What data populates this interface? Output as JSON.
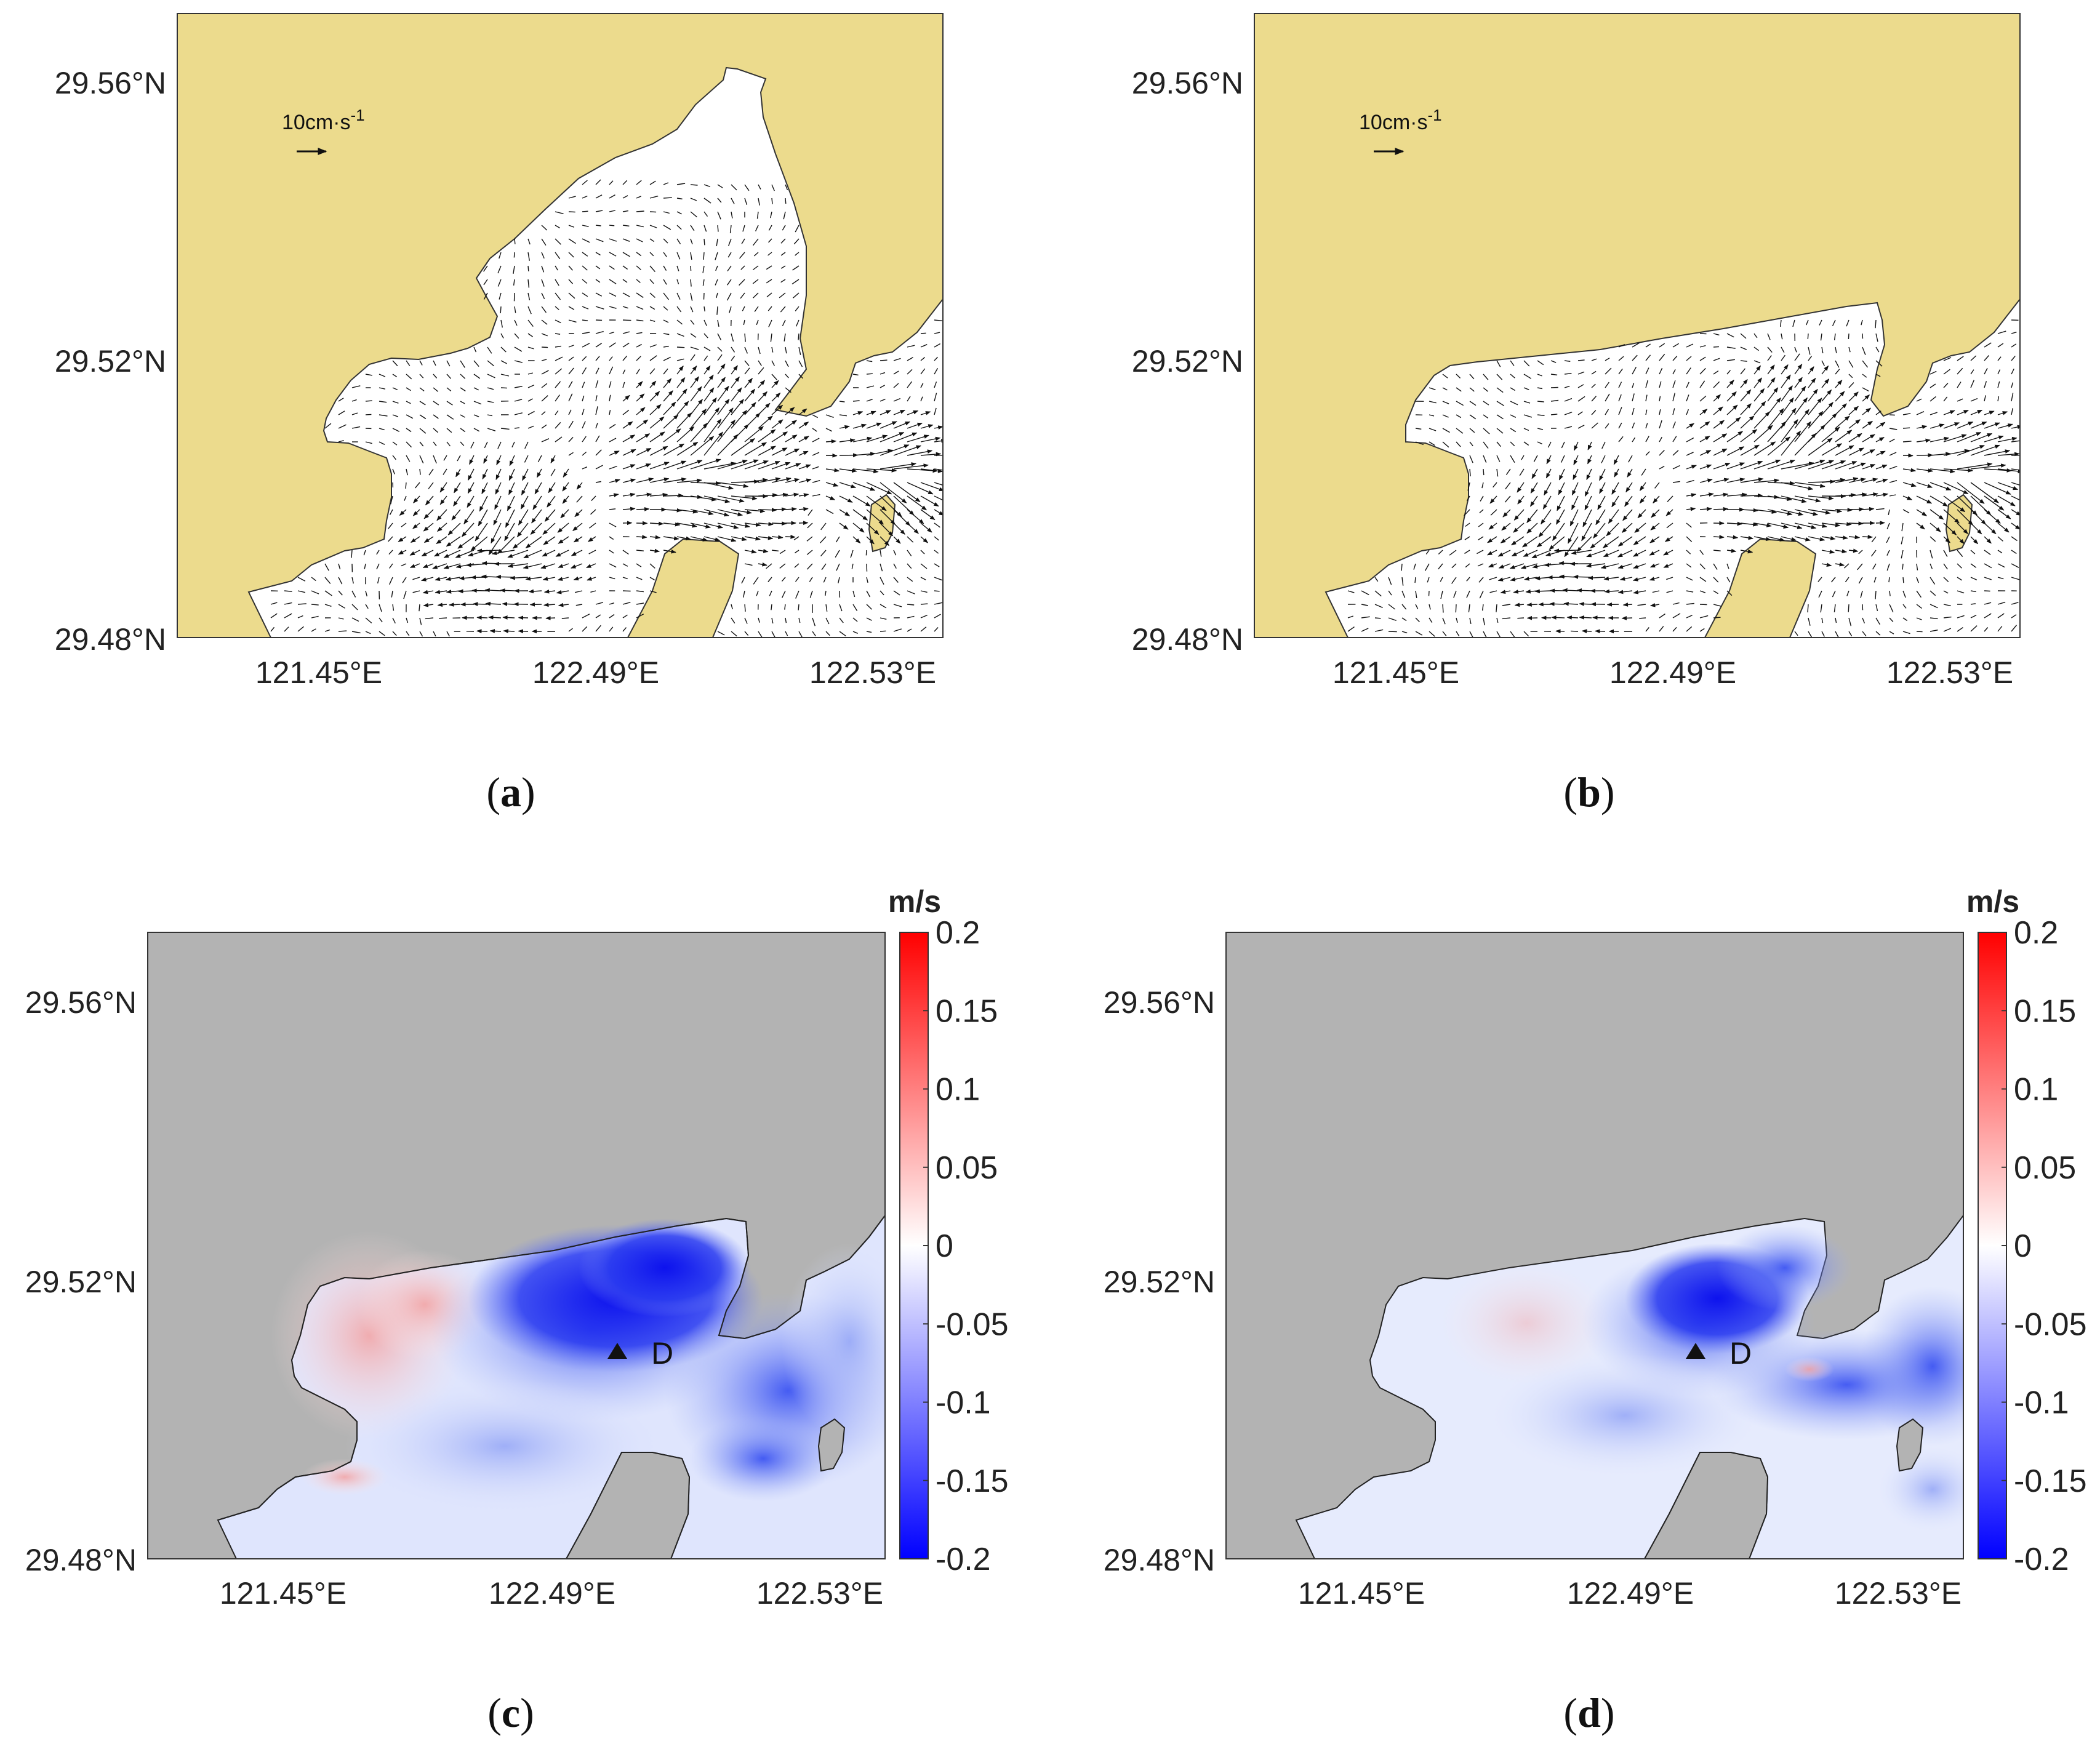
{
  "panels": [
    {
      "label_open": "(",
      "letter": "a",
      "label_close": ")",
      "type": "current-vector-map"
    },
    {
      "label_open": "(",
      "letter": "b",
      "label_close": ")",
      "type": "current-vector-map"
    },
    {
      "label_open": "(",
      "letter": "c",
      "label_close": ")",
      "type": "velocity-difference-map"
    },
    {
      "label_open": "(",
      "letter": "d",
      "label_close": ")",
      "type": "velocity-difference-map"
    }
  ],
  "axes": {
    "y_ticks": [
      "29.56°N",
      "29.52°N",
      "29.48°N"
    ],
    "x_ticks": [
      "121.45°E",
      "122.49°E",
      "122.53°E"
    ]
  },
  "scale_arrow": {
    "text": "10cm·s",
    "superscript": "-1"
  },
  "colorbar": {
    "unit": "m/s",
    "ticks": [
      "0.2",
      "0.15",
      "0.1",
      "0.05",
      "0",
      "-0.05",
      "-0.1",
      "-0.15",
      "-0.2"
    ],
    "min": -0.2,
    "max": 0.2,
    "colors": {
      "high": "#ff0000",
      "mid": "#ffffff",
      "low": "#0000ff"
    }
  },
  "station": {
    "name": "D",
    "marker": "triangle"
  },
  "colors": {
    "land_vector_maps": "#ecdb8d",
    "land_difference_maps": "#b3b3b3",
    "water": "#ffffff",
    "vectors": "#111111"
  }
}
